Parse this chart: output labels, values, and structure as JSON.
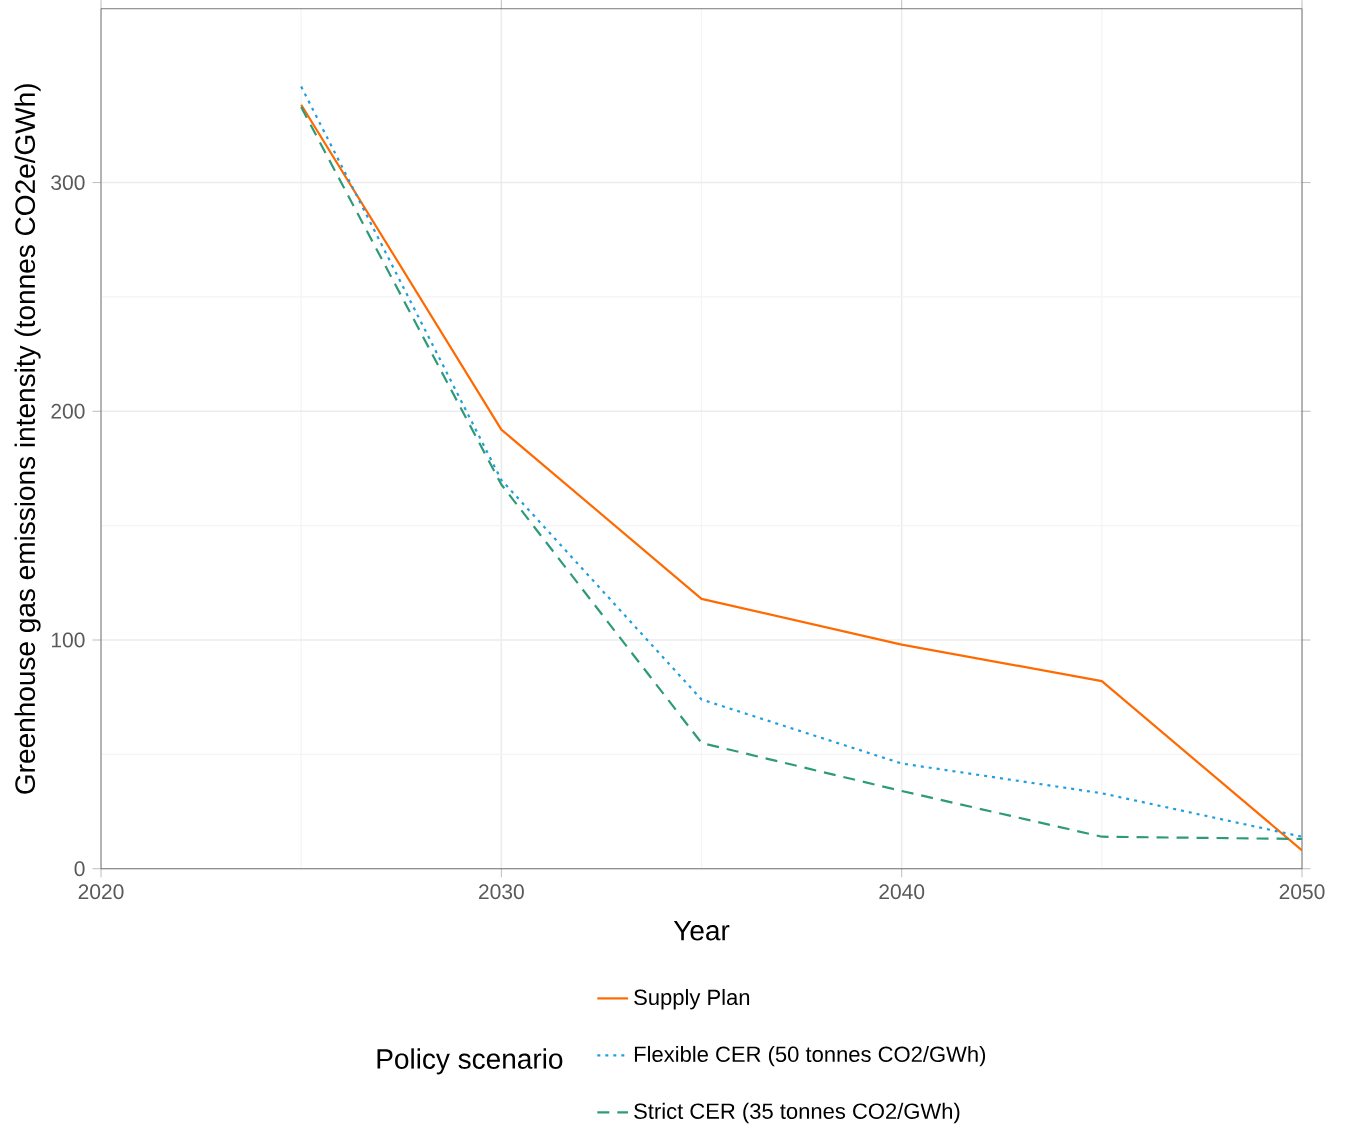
{
  "chart_data": {
    "type": "line",
    "xlabel": "Year",
    "ylabel": "Greenhouse gas emissions intensity (tonnes CO2e/GWh)",
    "legend_title": "Policy scenario",
    "x": [
      2025,
      2030,
      2035,
      2040,
      2045,
      2050
    ],
    "series": [
      {
        "name": "Supply Plan",
        "color": "#ff6a00",
        "line_style": "solid",
        "values": [
          334,
          192,
          118,
          98,
          82,
          8
        ]
      },
      {
        "name": "Flexible CER (50 tonnes CO2/GWh)",
        "color": "#1f9ee0",
        "line_style": "dotted",
        "values": [
          342,
          170,
          74,
          46,
          33,
          14
        ]
      },
      {
        "name": "Strict CER (35 tonnes CO2/GWh)",
        "color": "#2e9a78",
        "line_style": "dashed",
        "values": [
          333,
          168,
          55,
          34,
          14,
          13
        ]
      }
    ],
    "xlim": [
      2020,
      2050
    ],
    "ylim": [
      0,
      376
    ],
    "xticks": [
      2020,
      2030,
      2040,
      2050
    ],
    "yticks": [
      0,
      100,
      200,
      300
    ],
    "grid": true,
    "legend": "bottom",
    "marker": "none"
  }
}
